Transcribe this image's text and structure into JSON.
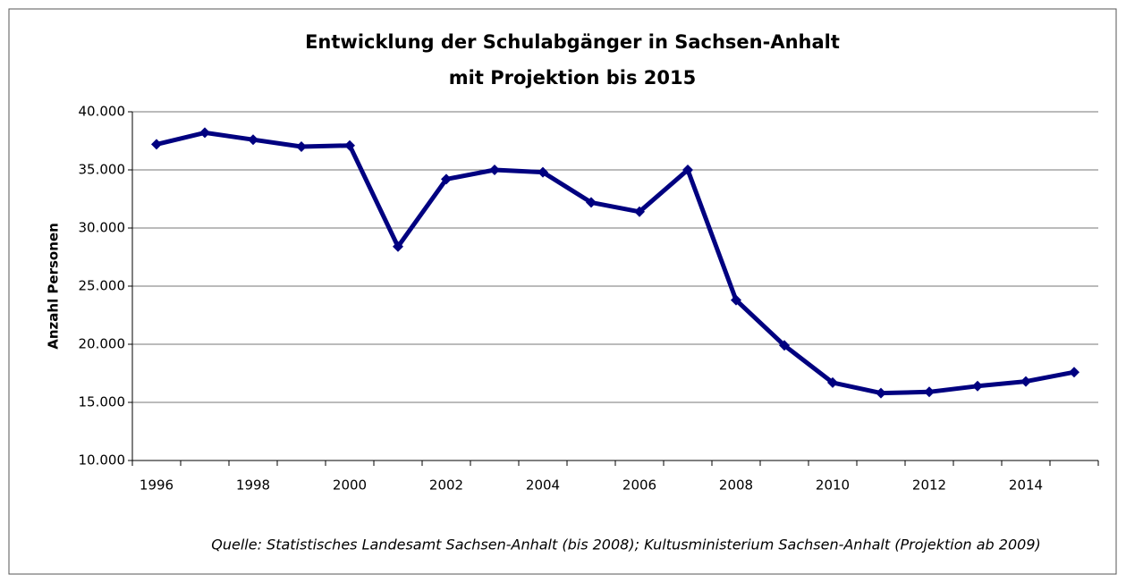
{
  "chart_data": {
    "type": "line",
    "title": [
      "Entwicklung der Schulabgänger in Sachsen-Anhalt",
      "mit Projektion bis 2015"
    ],
    "y_label": "Anzahl Personen",
    "source": "Quelle: Statistisches Landesamt Sachsen-Anhalt (bis 2008); Kultusministerium Sachsen-Anhalt (Projektion ab 2009)",
    "categories": [
      "1996",
      null,
      "1998",
      null,
      "2000",
      null,
      "2002",
      null,
      "2004",
      null,
      "2006",
      null,
      "2008",
      null,
      "2010",
      null,
      "2012",
      null,
      "2014",
      null
    ],
    "series": [
      {
        "name": "Schulabgänger",
        "color": "#000080",
        "values": [
          37200,
          38200,
          37600,
          37000,
          37100,
          28400,
          34200,
          35000,
          34800,
          32200,
          31400,
          35000,
          23800,
          19900,
          16700,
          15800,
          15900,
          16400,
          16800,
          17600
        ]
      }
    ],
    "ylim": [
      10000,
      40000
    ],
    "yticks": [
      {
        "value": 10000,
        "label": "10.000"
      },
      {
        "value": 15000,
        "label": "15.000"
      },
      {
        "value": 20000,
        "label": "20.000"
      },
      {
        "value": 25000,
        "label": "25.000"
      },
      {
        "value": 30000,
        "label": "30.000"
      },
      {
        "value": 35000,
        "label": "35.000"
      },
      {
        "value": 40000,
        "label": "40.000"
      }
    ],
    "grid": true
  }
}
